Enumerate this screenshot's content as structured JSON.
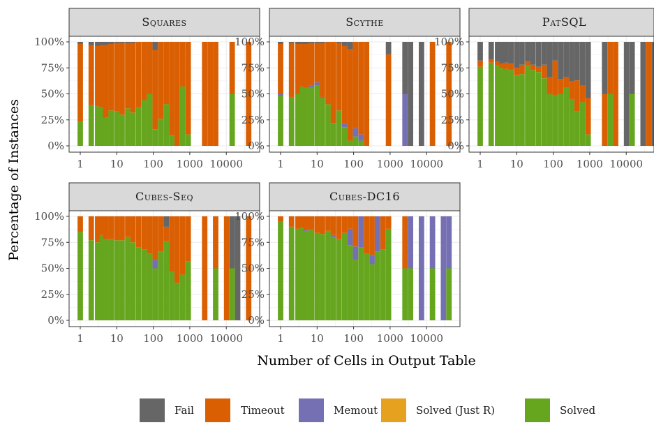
{
  "figure": {
    "ylabel": "Percentage of Instances",
    "xlabel": "Number of Cells in Output Table",
    "y_ticks": [
      "0%",
      "25%",
      "50%",
      "75%",
      "100%"
    ],
    "x_ticks": [
      "1",
      "10",
      "100",
      "1000",
      "10000"
    ]
  },
  "legend": {
    "items": [
      {
        "key": "fail",
        "label": "Fail",
        "color": "#666666"
      },
      {
        "key": "timeout",
        "label": "Timeout",
        "color": "#d95f02"
      },
      {
        "key": "memout",
        "label": "Memout",
        "color": "#7570b3"
      },
      {
        "key": "just_r",
        "label": "Solved (Just R)",
        "color": "#e6a11f"
      },
      {
        "key": "solved",
        "label": "Solved",
        "color": "#66a61e"
      }
    ]
  },
  "chart_data": [
    {
      "type": "bar",
      "title": "Squares",
      "stack_order": [
        "solved",
        "just_r",
        "memout",
        "timeout",
        "fail"
      ],
      "x_scale": "log",
      "ylim": [
        0,
        100
      ],
      "bars": [
        {
          "x": 1,
          "solved": 23,
          "memout": 0,
          "timeout": 75,
          "fail": 2
        },
        {
          "x": 2,
          "solved": 39,
          "memout": 0,
          "timeout": 58,
          "fail": 3
        },
        {
          "x": 3,
          "solved": 38,
          "memout": 0,
          "timeout": 58,
          "fail": 4
        },
        {
          "x": 4,
          "solved": 37,
          "memout": 0,
          "timeout": 60,
          "fail": 3
        },
        {
          "x": 5,
          "solved": 27,
          "memout": 0,
          "timeout": 70,
          "fail": 3
        },
        {
          "x": 7,
          "solved": 34,
          "memout": 0,
          "timeout": 64,
          "fail": 2
        },
        {
          "x": 10,
          "solved": 33,
          "memout": 0,
          "timeout": 66,
          "fail": 1
        },
        {
          "x": 14,
          "solved": 30,
          "memout": 0,
          "timeout": 69,
          "fail": 1
        },
        {
          "x": 20,
          "solved": 36,
          "memout": 0,
          "timeout": 63,
          "fail": 1
        },
        {
          "x": 28,
          "solved": 32,
          "memout": 0,
          "timeout": 67,
          "fail": 1
        },
        {
          "x": 40,
          "solved": 37,
          "memout": 0,
          "timeout": 63,
          "fail": 0
        },
        {
          "x": 57,
          "solved": 44,
          "memout": 0,
          "timeout": 56,
          "fail": 0
        },
        {
          "x": 80,
          "solved": 50,
          "memout": 0,
          "timeout": 50,
          "fail": 0
        },
        {
          "x": 113,
          "solved": 16,
          "memout": 0,
          "timeout": 76,
          "fail": 8
        },
        {
          "x": 160,
          "solved": 26,
          "memout": 0,
          "timeout": 74,
          "fail": 0
        },
        {
          "x": 226,
          "solved": 40,
          "memout": 0,
          "timeout": 60,
          "fail": 0
        },
        {
          "x": 320,
          "solved": 10,
          "memout": 0,
          "timeout": 90,
          "fail": 0
        },
        {
          "x": 452,
          "solved": 0,
          "memout": 0,
          "timeout": 100,
          "fail": 0
        },
        {
          "x": 640,
          "solved": 57,
          "memout": 0,
          "timeout": 43,
          "fail": 0
        },
        {
          "x": 905,
          "solved": 11,
          "memout": 0,
          "timeout": 89,
          "fail": 0
        },
        {
          "x": 2560,
          "solved": 0,
          "memout": 0,
          "timeout": 100,
          "fail": 0
        },
        {
          "x": 3620,
          "solved": 0,
          "memout": 0,
          "timeout": 100,
          "fail": 0
        },
        {
          "x": 5120,
          "solved": 0,
          "memout": 0,
          "timeout": 100,
          "fail": 0
        },
        {
          "x": 14500,
          "solved": 50,
          "memout": 0,
          "timeout": 50,
          "fail": 0
        },
        {
          "x": 41000,
          "solved": 0,
          "memout": 0,
          "timeout": 100,
          "fail": 0
        }
      ]
    },
    {
      "type": "bar",
      "title": "Scythe",
      "stack_order": [
        "solved",
        "just_r",
        "memout",
        "timeout",
        "fail"
      ],
      "x_scale": "log",
      "ylim": [
        0,
        100
      ],
      "bars": [
        {
          "x": 1,
          "solved": 48,
          "memout": 2,
          "timeout": 48,
          "fail": 2
        },
        {
          "x": 2,
          "solved": 47,
          "memout": 0,
          "timeout": 52,
          "fail": 1
        },
        {
          "x": 3,
          "solved": 50,
          "memout": 0,
          "timeout": 48,
          "fail": 2
        },
        {
          "x": 4,
          "solved": 57,
          "memout": 0,
          "timeout": 41,
          "fail": 2
        },
        {
          "x": 5,
          "solved": 56,
          "memout": 0,
          "timeout": 42,
          "fail": 2
        },
        {
          "x": 7,
          "solved": 56,
          "memout": 2,
          "timeout": 41,
          "fail": 1
        },
        {
          "x": 10,
          "solved": 58,
          "memout": 3,
          "timeout": 38,
          "fail": 1
        },
        {
          "x": 14,
          "solved": 46,
          "memout": 1,
          "timeout": 52,
          "fail": 1
        },
        {
          "x": 20,
          "solved": 40,
          "memout": 0,
          "timeout": 60,
          "fail": 0
        },
        {
          "x": 28,
          "solved": 22,
          "memout": 0,
          "timeout": 78,
          "fail": 0
        },
        {
          "x": 40,
          "solved": 34,
          "memout": 0,
          "timeout": 65,
          "fail": 1
        },
        {
          "x": 57,
          "solved": 18,
          "memout": 3,
          "timeout": 75,
          "fail": 4
        },
        {
          "x": 80,
          "solved": 5,
          "memout": 0,
          "timeout": 88,
          "fail": 7
        },
        {
          "x": 113,
          "solved": 9,
          "memout": 8,
          "timeout": 83,
          "fail": 0
        },
        {
          "x": 160,
          "solved": 5,
          "memout": 6,
          "timeout": 89,
          "fail": 0
        },
        {
          "x": 226,
          "solved": 0,
          "memout": 0,
          "timeout": 100,
          "fail": 0
        },
        {
          "x": 905,
          "solved": 0,
          "memout": 0,
          "timeout": 88,
          "fail": 12
        },
        {
          "x": 2560,
          "solved": 0,
          "memout": 50,
          "timeout": 0,
          "fail": 50
        },
        {
          "x": 3620,
          "solved": 0,
          "memout": 0,
          "timeout": 0,
          "fail": 100
        },
        {
          "x": 7240,
          "solved": 0,
          "memout": 0,
          "timeout": 0,
          "fail": 100
        },
        {
          "x": 14500,
          "solved": 0,
          "memout": 0,
          "timeout": 100,
          "fail": 0
        },
        {
          "x": 41000,
          "solved": 0,
          "memout": 0,
          "timeout": 100,
          "fail": 0
        }
      ]
    },
    {
      "type": "bar",
      "title": "PatSQL",
      "stack_order": [
        "solved",
        "just_r",
        "memout",
        "timeout",
        "fail"
      ],
      "x_scale": "log",
      "ylim": [
        0,
        100
      ],
      "bars": [
        {
          "x": 1,
          "solved": 76,
          "memout": 0,
          "timeout": 6,
          "fail": 18
        },
        {
          "x": 2,
          "solved": 80,
          "memout": 0,
          "timeout": 3,
          "fail": 17
        },
        {
          "x": 3,
          "solved": 77,
          "memout": 0,
          "timeout": 4,
          "fail": 19
        },
        {
          "x": 4,
          "solved": 75,
          "memout": 0,
          "timeout": 4,
          "fail": 21
        },
        {
          "x": 5,
          "solved": 74,
          "memout": 0,
          "timeout": 6,
          "fail": 20
        },
        {
          "x": 7,
          "solved": 73,
          "memout": 0,
          "timeout": 6,
          "fail": 21
        },
        {
          "x": 10,
          "solved": 68,
          "memout": 0,
          "timeout": 7,
          "fail": 25
        },
        {
          "x": 14,
          "solved": 69,
          "memout": 0,
          "timeout": 9,
          "fail": 22
        },
        {
          "x": 20,
          "solved": 77,
          "memout": 0,
          "timeout": 4,
          "fail": 19
        },
        {
          "x": 28,
          "solved": 73,
          "memout": 0,
          "timeout": 5,
          "fail": 22
        },
        {
          "x": 40,
          "solved": 71,
          "memout": 0,
          "timeout": 5,
          "fail": 24
        },
        {
          "x": 57,
          "solved": 65,
          "memout": 0,
          "timeout": 13,
          "fail": 22
        },
        {
          "x": 80,
          "solved": 50,
          "memout": 0,
          "timeout": 16,
          "fail": 34
        },
        {
          "x": 113,
          "solved": 49,
          "memout": 0,
          "timeout": 33,
          "fail": 18
        },
        {
          "x": 160,
          "solved": 50,
          "memout": 0,
          "timeout": 14,
          "fail": 36
        },
        {
          "x": 226,
          "solved": 56,
          "memout": 0,
          "timeout": 10,
          "fail": 34
        },
        {
          "x": 320,
          "solved": 45,
          "memout": 0,
          "timeout": 17,
          "fail": 38
        },
        {
          "x": 452,
          "solved": 33,
          "memout": 0,
          "timeout": 30,
          "fail": 37
        },
        {
          "x": 640,
          "solved": 42,
          "memout": 0,
          "timeout": 16,
          "fail": 42
        },
        {
          "x": 905,
          "solved": 11,
          "memout": 0,
          "timeout": 35,
          "fail": 54
        },
        {
          "x": 2560,
          "solved": 0,
          "memout": 0,
          "timeout": 50,
          "fail": 50
        },
        {
          "x": 3620,
          "solved": 50,
          "memout": 0,
          "timeout": 50,
          "fail": 0
        },
        {
          "x": 5120,
          "solved": 0,
          "memout": 0,
          "timeout": 100,
          "fail": 0
        },
        {
          "x": 10240,
          "solved": 0,
          "memout": 0,
          "timeout": 0,
          "fail": 100
        },
        {
          "x": 14500,
          "solved": 50,
          "memout": 0,
          "timeout": 0,
          "fail": 50
        },
        {
          "x": 29000,
          "solved": 0,
          "memout": 0,
          "timeout": 0,
          "fail": 100
        },
        {
          "x": 41000,
          "solved": 0,
          "memout": 0,
          "timeout": 100,
          "fail": 0
        },
        {
          "x": 58000,
          "solved": 0,
          "memout": 0,
          "timeout": 0,
          "fail": 100
        }
      ]
    },
    {
      "type": "bar",
      "title": "Cubes-Seq",
      "stack_order": [
        "solved",
        "just_r",
        "memout",
        "timeout",
        "fail"
      ],
      "x_scale": "log",
      "ylim": [
        0,
        100
      ],
      "bars": [
        {
          "x": 1,
          "solved": 85,
          "memout": 0,
          "timeout": 15,
          "fail": 0
        },
        {
          "x": 2,
          "solved": 77,
          "memout": 0,
          "timeout": 23,
          "fail": 0
        },
        {
          "x": 3,
          "solved": 75,
          "memout": 0,
          "timeout": 25,
          "fail": 0
        },
        {
          "x": 4,
          "solved": 82,
          "memout": 0,
          "timeout": 18,
          "fail": 0
        },
        {
          "x": 5,
          "solved": 78,
          "memout": 0,
          "timeout": 22,
          "fail": 0
        },
        {
          "x": 7,
          "solved": 78,
          "memout": 0,
          "timeout": 22,
          "fail": 0
        },
        {
          "x": 10,
          "solved": 77,
          "memout": 0,
          "timeout": 23,
          "fail": 0
        },
        {
          "x": 14,
          "solved": 77,
          "memout": 0,
          "timeout": 23,
          "fail": 0
        },
        {
          "x": 20,
          "solved": 80,
          "memout": 0,
          "timeout": 20,
          "fail": 0
        },
        {
          "x": 28,
          "solved": 75,
          "memout": 0,
          "timeout": 25,
          "fail": 0
        },
        {
          "x": 40,
          "solved": 70,
          "memout": 0,
          "timeout": 30,
          "fail": 0
        },
        {
          "x": 57,
          "solved": 68,
          "memout": 0,
          "timeout": 32,
          "fail": 0
        },
        {
          "x": 80,
          "solved": 64,
          "memout": 0,
          "timeout": 36,
          "fail": 0
        },
        {
          "x": 113,
          "solved": 50,
          "memout": 8,
          "timeout": 42,
          "fail": 0
        },
        {
          "x": 160,
          "solved": 66,
          "memout": 0,
          "timeout": 34,
          "fail": 0
        },
        {
          "x": 226,
          "solved": 76,
          "memout": 0,
          "timeout": 14,
          "fail": 10
        },
        {
          "x": 320,
          "solved": 47,
          "memout": 0,
          "timeout": 53,
          "fail": 0
        },
        {
          "x": 452,
          "solved": 36,
          "memout": 0,
          "timeout": 64,
          "fail": 0
        },
        {
          "x": 640,
          "solved": 44,
          "memout": 0,
          "timeout": 56,
          "fail": 0
        },
        {
          "x": 905,
          "solved": 57,
          "memout": 0,
          "timeout": 43,
          "fail": 0
        },
        {
          "x": 2560,
          "solved": 0,
          "memout": 0,
          "timeout": 100,
          "fail": 0
        },
        {
          "x": 5120,
          "solved": 50,
          "memout": 0,
          "timeout": 50,
          "fail": 0
        },
        {
          "x": 10240,
          "solved": 0,
          "memout": 0,
          "timeout": 100,
          "fail": 0
        },
        {
          "x": 14500,
          "solved": 50,
          "memout": 0,
          "timeout": 0,
          "fail": 50
        },
        {
          "x": 20500,
          "solved": 0,
          "memout": 0,
          "timeout": 0,
          "fail": 100
        },
        {
          "x": 41000,
          "solved": 0,
          "memout": 0,
          "timeout": 100,
          "fail": 0
        }
      ]
    },
    {
      "type": "bar",
      "title": "Cubes-DC16",
      "stack_order": [
        "solved",
        "just_r",
        "memout",
        "timeout",
        "fail"
      ],
      "x_scale": "log",
      "ylim": [
        0,
        100
      ],
      "bars": [
        {
          "x": 1,
          "solved": 95,
          "memout": 0,
          "timeout": 5,
          "fail": 0
        },
        {
          "x": 2,
          "solved": 90,
          "memout": 0,
          "timeout": 10,
          "fail": 0
        },
        {
          "x": 3,
          "solved": 88,
          "memout": 0,
          "timeout": 12,
          "fail": 0
        },
        {
          "x": 4,
          "solved": 89,
          "memout": 0,
          "timeout": 11,
          "fail": 0
        },
        {
          "x": 5,
          "solved": 86,
          "memout": 1,
          "timeout": 13,
          "fail": 0
        },
        {
          "x": 7,
          "solved": 87,
          "memout": 0,
          "timeout": 13,
          "fail": 0
        },
        {
          "x": 10,
          "solved": 84,
          "memout": 0,
          "timeout": 16,
          "fail": 0
        },
        {
          "x": 14,
          "solved": 83,
          "memout": 0,
          "timeout": 17,
          "fail": 0
        },
        {
          "x": 20,
          "solved": 86,
          "memout": 0,
          "timeout": 14,
          "fail": 0
        },
        {
          "x": 28,
          "solved": 80,
          "memout": 2,
          "timeout": 18,
          "fail": 0
        },
        {
          "x": 40,
          "solved": 78,
          "memout": 0,
          "timeout": 22,
          "fail": 0
        },
        {
          "x": 57,
          "solved": 84,
          "memout": 0,
          "timeout": 16,
          "fail": 0
        },
        {
          "x": 80,
          "solved": 72,
          "memout": 16,
          "timeout": 12,
          "fail": 0
        },
        {
          "x": 113,
          "solved": 58,
          "memout": 13,
          "timeout": 29,
          "fail": 0
        },
        {
          "x": 160,
          "solved": 70,
          "memout": 30,
          "timeout": 0,
          "fail": 0
        },
        {
          "x": 226,
          "solved": 64,
          "memout": 0,
          "timeout": 36,
          "fail": 0
        },
        {
          "x": 320,
          "solved": 54,
          "memout": 9,
          "timeout": 37,
          "fail": 0
        },
        {
          "x": 452,
          "solved": 66,
          "memout": 34,
          "timeout": 0,
          "fail": 0
        },
        {
          "x": 640,
          "solved": 68,
          "memout": 0,
          "timeout": 32,
          "fail": 0
        },
        {
          "x": 905,
          "solved": 88,
          "memout": 0,
          "timeout": 12,
          "fail": 0
        },
        {
          "x": 2560,
          "solved": 50,
          "memout": 0,
          "timeout": 50,
          "fail": 0
        },
        {
          "x": 3620,
          "solved": 50,
          "memout": 50,
          "timeout": 0,
          "fail": 0
        },
        {
          "x": 7240,
          "solved": 0,
          "memout": 100,
          "timeout": 0,
          "fail": 0
        },
        {
          "x": 14500,
          "solved": 50,
          "memout": 50,
          "timeout": 0,
          "fail": 0
        },
        {
          "x": 29000,
          "solved": 0,
          "memout": 100,
          "timeout": 0,
          "fail": 0
        },
        {
          "x": 41000,
          "solved": 50,
          "memout": 50,
          "timeout": 0,
          "fail": 0
        }
      ]
    }
  ]
}
